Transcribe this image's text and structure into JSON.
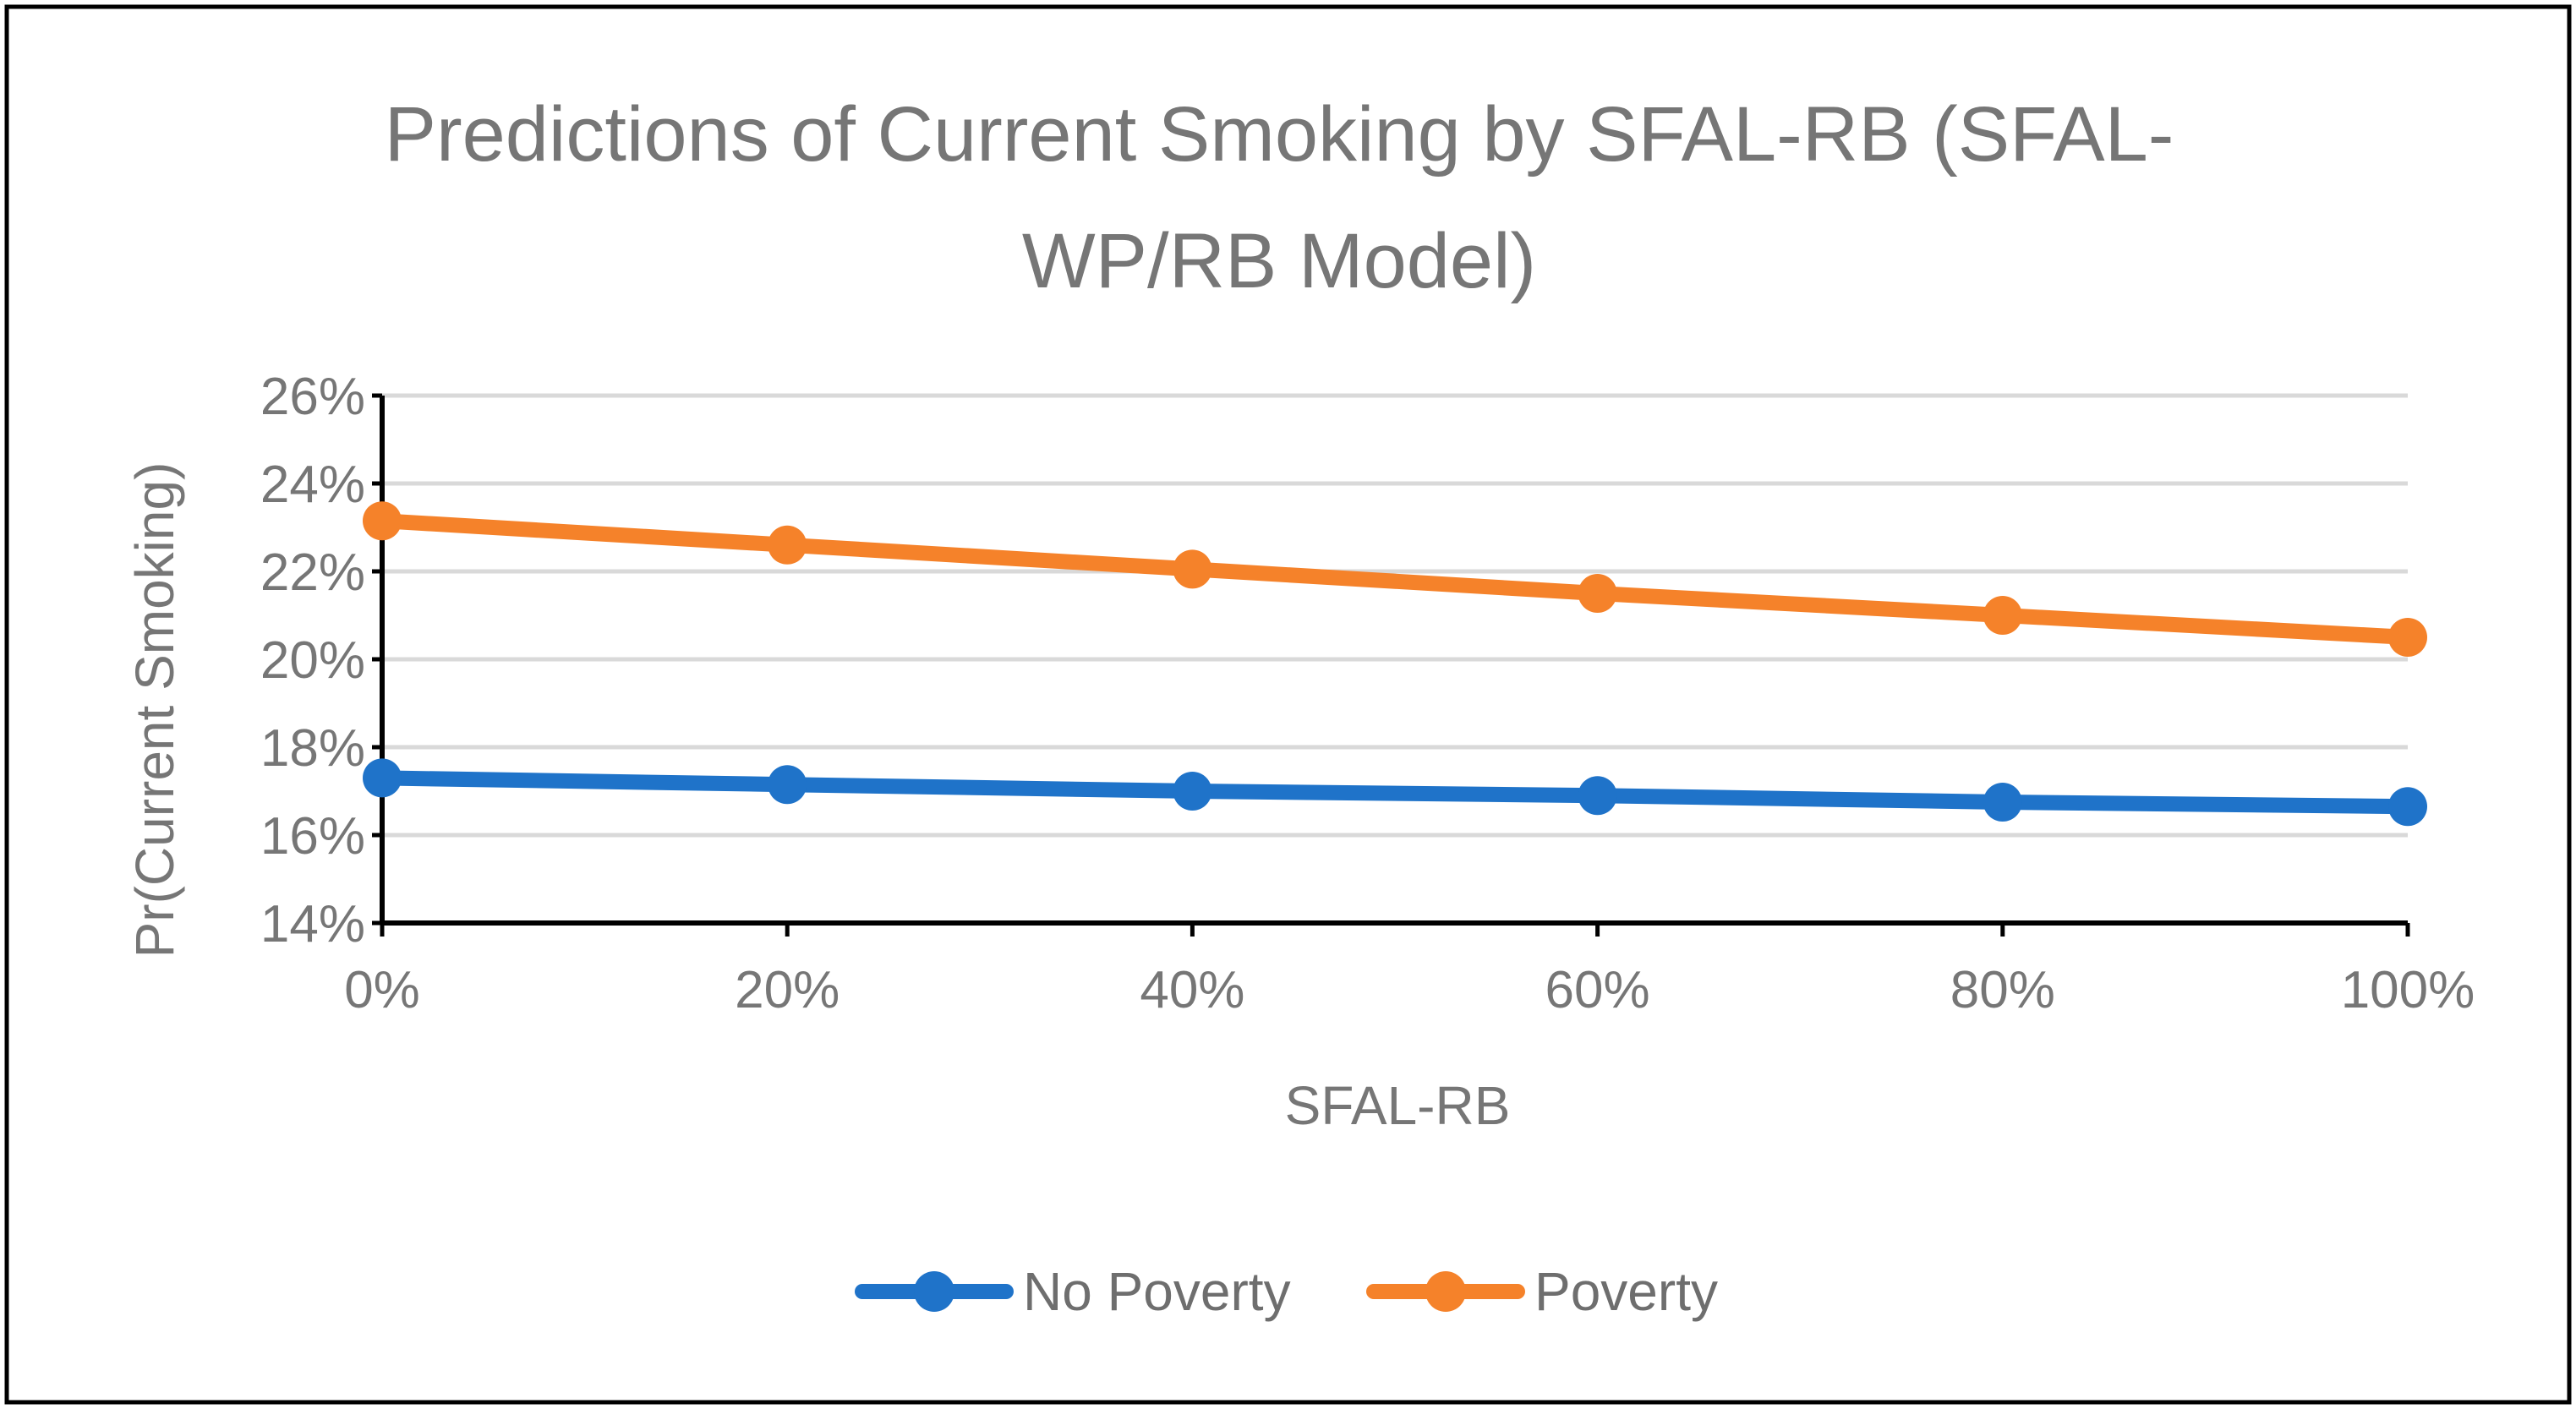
{
  "chart_data": {
    "type": "line",
    "title_lines": [
      "Predictions of Current Smoking by SFAL-RB (SFAL-",
      "WP/RB Model)"
    ],
    "xlabel": "SFAL-RB",
    "ylabel": "Pr(Current Smoking)",
    "categories": [
      "0%",
      "20%",
      "40%",
      "60%",
      "80%",
      "100%"
    ],
    "x": [
      0,
      20,
      40,
      60,
      80,
      100
    ],
    "ylim": [
      14,
      26
    ],
    "yticks": [
      14,
      16,
      18,
      20,
      22,
      24,
      26
    ],
    "ytick_labels": [
      "14%",
      "16%",
      "18%",
      "20%",
      "22%",
      "24%",
      "26%"
    ],
    "grid": true,
    "legend_position": "bottom",
    "series": [
      {
        "name": "No Poverty",
        "color": "#1f73c9",
        "values": [
          17.3,
          17.15,
          17.0,
          16.9,
          16.75,
          16.65
        ]
      },
      {
        "name": "Poverty",
        "color": "#f5822a",
        "values": [
          23.15,
          22.6,
          22.05,
          21.5,
          21.0,
          20.5
        ]
      }
    ]
  }
}
